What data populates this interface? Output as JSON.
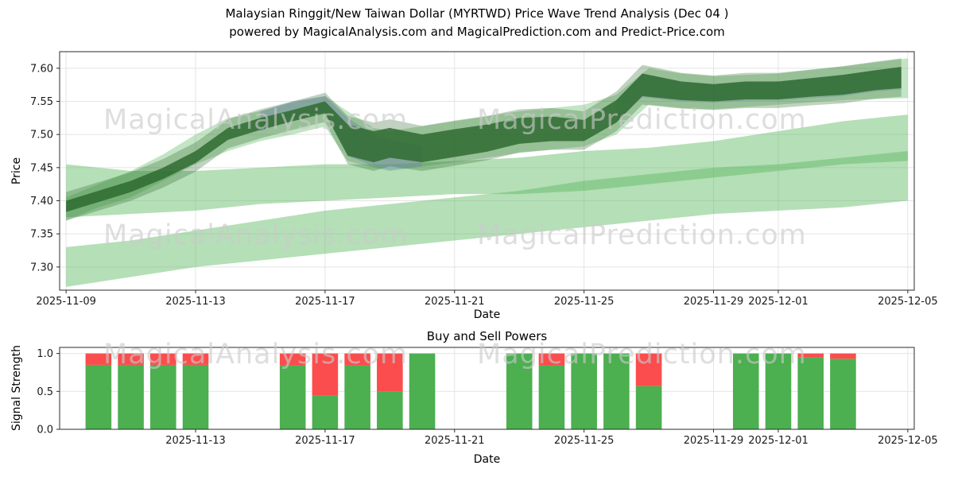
{
  "title": {
    "line1": "Malaysian Ringgit/New Taiwan Dollar (MYRTWD) Price Wave Trend Analysis (Dec 04 )",
    "line2": "powered by MagicalAnalysis.com and MagicalPrediction.com and Predict-Price.com"
  },
  "watermarks": {
    "analysis": "MagicalAnalysis.com",
    "prediction": "MagicalPrediction.com"
  },
  "chart_data": [
    {
      "type": "area",
      "name": "price-wave-trend",
      "xlabel": "Date",
      "ylabel": "Price",
      "base_date": "2025-11-09",
      "xlim_days": [
        -0.2,
        26.2
      ],
      "ylim": [
        7.265,
        7.625
      ],
      "grid": true,
      "yticks": [
        7.3,
        7.35,
        7.4,
        7.45,
        7.5,
        7.55,
        7.6
      ],
      "ytick_labels": [
        "7.30",
        "7.35",
        "7.40",
        "7.45",
        "7.50",
        "7.55",
        "7.60"
      ],
      "xticks": [
        {
          "label": "2025-11-09",
          "day": 0
        },
        {
          "label": "2025-11-13",
          "day": 4
        },
        {
          "label": "2025-11-17",
          "day": 8
        },
        {
          "label": "2025-11-21",
          "day": 12
        },
        {
          "label": "2025-11-25",
          "day": 16
        },
        {
          "label": "2025-11-29",
          "day": 20
        },
        {
          "label": "2025-12-01",
          "day": 22
        },
        {
          "label": "2025-12-05",
          "day": 26
        }
      ],
      "bands": [
        {
          "name": "lower-forecast-band",
          "color": "#5cb860",
          "opacity": 0.45,
          "x": [
            0,
            2,
            4,
            6,
            8,
            10,
            12,
            14,
            16,
            18,
            20,
            22,
            24,
            26
          ],
          "upper": [
            7.33,
            7.34,
            7.355,
            7.37,
            7.385,
            7.395,
            7.405,
            7.415,
            7.43,
            7.44,
            7.45,
            7.455,
            7.465,
            7.475
          ],
          "lower": [
            7.27,
            7.285,
            7.3,
            7.31,
            7.32,
            7.33,
            7.34,
            7.35,
            7.36,
            7.37,
            7.38,
            7.385,
            7.39,
            7.4
          ]
        },
        {
          "name": "middle-forecast-band",
          "color": "#5cb860",
          "opacity": 0.45,
          "x": [
            0,
            2,
            4,
            6,
            8,
            10,
            12,
            14,
            16,
            18,
            20,
            22,
            24,
            26
          ],
          "upper": [
            7.455,
            7.445,
            7.445,
            7.45,
            7.455,
            7.455,
            7.46,
            7.465,
            7.475,
            7.48,
            7.49,
            7.505,
            7.52,
            7.53
          ],
          "lower": [
            7.375,
            7.38,
            7.385,
            7.395,
            7.4,
            7.405,
            7.41,
            7.41,
            7.415,
            7.425,
            7.435,
            7.445,
            7.455,
            7.46
          ]
        },
        {
          "name": "upper-fan-band",
          "color": "#4caf50",
          "opacity": 0.33,
          "x": [
            0,
            1,
            2,
            3,
            4,
            5,
            6,
            7,
            8,
            8.7,
            9.5,
            10,
            12,
            14,
            16,
            17,
            18,
            19,
            20,
            22,
            24,
            26
          ],
          "upper": [
            7.405,
            7.425,
            7.445,
            7.47,
            7.5,
            7.525,
            7.535,
            7.548,
            7.558,
            7.535,
            7.51,
            7.505,
            7.52,
            7.535,
            7.545,
            7.56,
            7.6,
            7.592,
            7.588,
            7.592,
            7.603,
            7.615
          ],
          "lower": [
            7.37,
            7.39,
            7.405,
            7.43,
            7.455,
            7.475,
            7.49,
            7.5,
            7.512,
            7.46,
            7.45,
            7.445,
            7.458,
            7.472,
            7.482,
            7.5,
            7.545,
            7.54,
            7.538,
            7.545,
            7.552,
            7.555
          ]
        },
        {
          "name": "peak-blue-band-1",
          "color": "#8f9bd8",
          "opacity": 0.5,
          "x": [
            6,
            7,
            8,
            8.7,
            9.5,
            10,
            11
          ],
          "upper": [
            7.535,
            7.55,
            7.558,
            7.525,
            7.5,
            7.492,
            7.483
          ],
          "lower": [
            7.505,
            7.522,
            7.535,
            7.468,
            7.452,
            7.446,
            7.452
          ]
        },
        {
          "name": "peak-blue-band-2",
          "color": "#8f9bd8",
          "opacity": 0.4,
          "x": [
            17,
            17.8,
            19,
            20,
            21,
            22,
            23,
            24,
            25,
            25.8
          ],
          "upper": [
            7.552,
            7.592,
            7.58,
            7.576,
            7.58,
            7.58,
            7.585,
            7.59,
            7.597,
            7.602
          ],
          "lower": [
            7.52,
            7.556,
            7.55,
            7.548,
            7.551,
            7.551,
            7.555,
            7.558,
            7.565,
            7.568
          ]
        },
        {
          "name": "trend-band",
          "color": "#2e6b30",
          "opacity": 0.85,
          "halo_expand": 0.013,
          "halo_opacity": 0.3,
          "x": [
            0,
            1,
            2,
            3,
            4,
            5,
            6,
            7,
            8,
            8.7,
            9.5,
            10,
            11,
            12,
            13,
            14,
            15,
            16,
            17,
            17.8,
            19,
            20,
            21,
            22,
            23,
            24,
            25,
            25.8
          ],
          "upper": [
            7.4,
            7.415,
            7.43,
            7.45,
            7.475,
            7.51,
            7.525,
            7.537,
            7.55,
            7.515,
            7.505,
            7.51,
            7.5,
            7.508,
            7.515,
            7.525,
            7.527,
            7.522,
            7.552,
            7.592,
            7.58,
            7.576,
            7.58,
            7.58,
            7.585,
            7.59,
            7.597,
            7.602
          ],
          "lower": [
            7.383,
            7.398,
            7.413,
            7.433,
            7.457,
            7.492,
            7.507,
            7.52,
            7.532,
            7.468,
            7.458,
            7.465,
            7.458,
            7.466,
            7.474,
            7.486,
            7.49,
            7.49,
            7.518,
            7.558,
            7.552,
            7.55,
            7.553,
            7.553,
            7.557,
            7.56,
            7.567,
            7.57
          ]
        }
      ]
    },
    {
      "type": "bar",
      "name": "buy-sell-powers",
      "title": "Buy and Sell Powers",
      "xlabel": "Date",
      "ylabel": "Signal Strength",
      "base_date": "2025-11-09",
      "xlim_days": [
        -0.2,
        26.2
      ],
      "ylim": [
        0,
        1.08
      ],
      "grid": true,
      "stacked": true,
      "bar_width_days": 0.8,
      "yticks": [
        0,
        0.5,
        1
      ],
      "ytick_labels": [
        "0.0",
        "0.5",
        "1.0"
      ],
      "xticks": [
        {
          "label": "2025-11-13",
          "day": 4
        },
        {
          "label": "2025-11-17",
          "day": 8
        },
        {
          "label": "2025-11-21",
          "day": 12
        },
        {
          "label": "2025-11-25",
          "day": 16
        },
        {
          "label": "2025-11-29",
          "day": 20
        },
        {
          "label": "2025-12-01",
          "day": 22
        },
        {
          "label": "2025-12-05",
          "day": 26
        }
      ],
      "series": [
        {
          "name": "buy",
          "color": "#4caf50"
        },
        {
          "name": "sell",
          "color": "#fb4d4d"
        }
      ],
      "bars": [
        {
          "date": "2025-11-10",
          "day": 1,
          "buy": 0.85,
          "sell": 0.15
        },
        {
          "date": "2025-11-11",
          "day": 2,
          "buy": 0.85,
          "sell": 0.15
        },
        {
          "date": "2025-11-12",
          "day": 3,
          "buy": 0.85,
          "sell": 0.15
        },
        {
          "date": "2025-11-13",
          "day": 4,
          "buy": 0.85,
          "sell": 0.15
        },
        {
          "date": "2025-11-16",
          "day": 7,
          "buy": 0.84,
          "sell": 0.16
        },
        {
          "date": "2025-11-17",
          "day": 8,
          "buy": 0.45,
          "sell": 0.55
        },
        {
          "date": "2025-11-18",
          "day": 9,
          "buy": 0.84,
          "sell": 0.16
        },
        {
          "date": "2025-11-19",
          "day": 10,
          "buy": 0.5,
          "sell": 0.5
        },
        {
          "date": "2025-11-20",
          "day": 11,
          "buy": 1.0,
          "sell": 0.0
        },
        {
          "date": "2025-11-23",
          "day": 14,
          "buy": 1.0,
          "sell": 0.0
        },
        {
          "date": "2025-11-24",
          "day": 15,
          "buy": 0.84,
          "sell": 0.16
        },
        {
          "date": "2025-11-25",
          "day": 16,
          "buy": 1.0,
          "sell": 0.0
        },
        {
          "date": "2025-11-26",
          "day": 17,
          "buy": 1.0,
          "sell": 0.0
        },
        {
          "date": "2025-11-27",
          "day": 18,
          "buy": 0.57,
          "sell": 0.43
        },
        {
          "date": "2025-11-30",
          "day": 21,
          "buy": 1.0,
          "sell": 0.0
        },
        {
          "date": "2025-12-01",
          "day": 22,
          "buy": 1.0,
          "sell": 0.0
        },
        {
          "date": "2025-12-02",
          "day": 23,
          "buy": 0.95,
          "sell": 0.05
        },
        {
          "date": "2025-12-03",
          "day": 24,
          "buy": 0.93,
          "sell": 0.07
        }
      ]
    }
  ]
}
